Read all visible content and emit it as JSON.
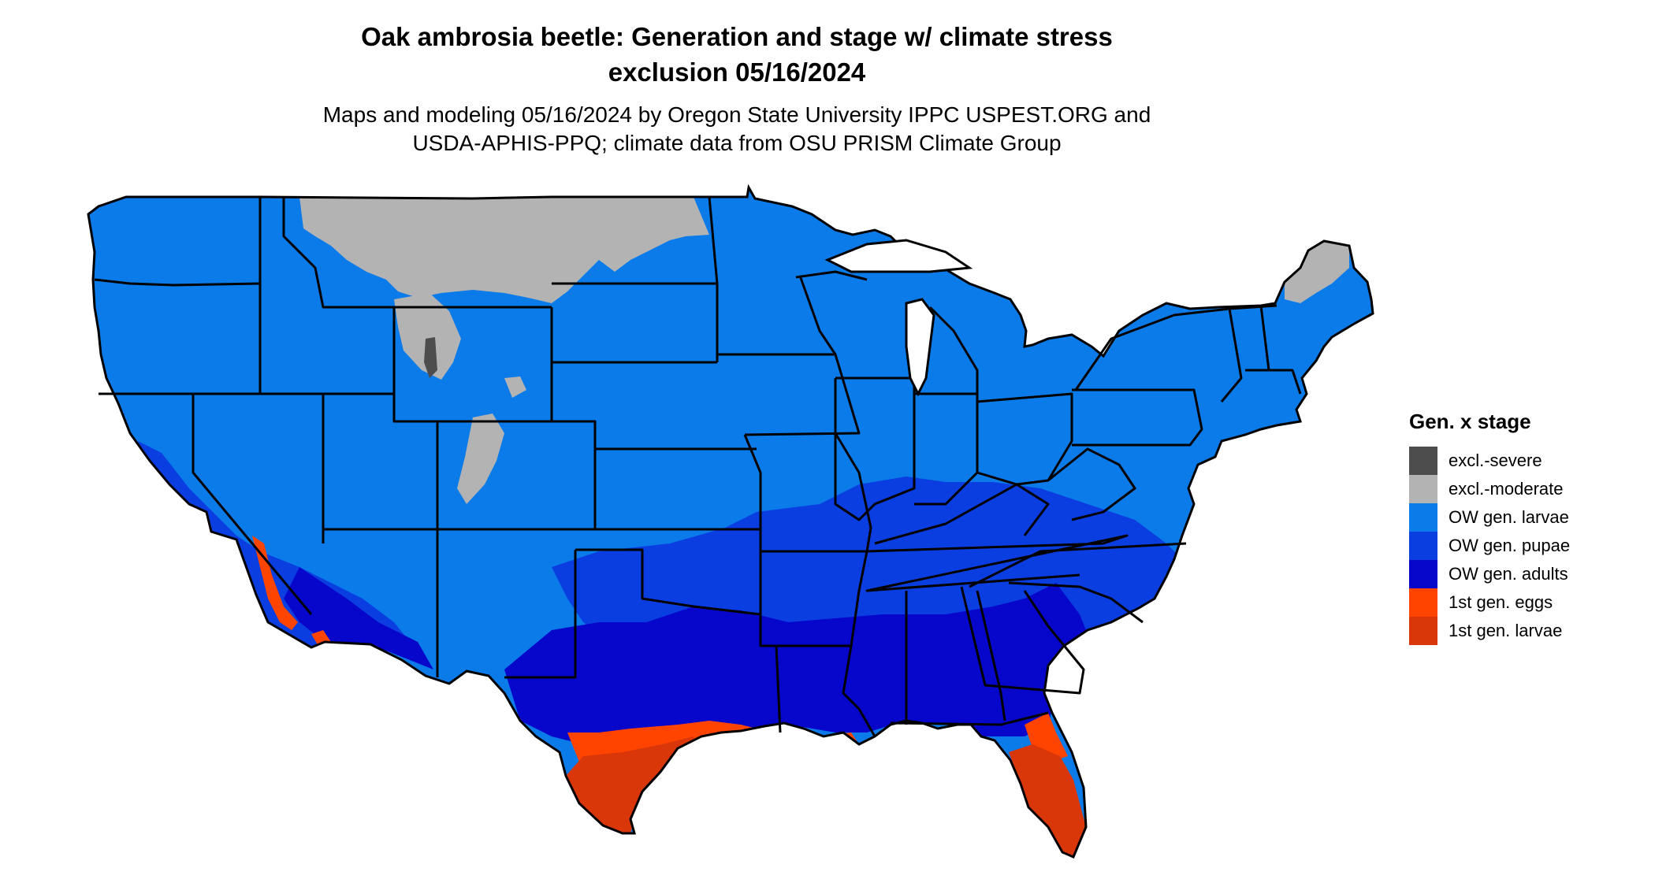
{
  "title": {
    "line1": "Oak ambrosia beetle: Generation and stage w/ climate stress",
    "line2": "exclusion 05/16/2024"
  },
  "subtitle": {
    "line1": "Maps and modeling 05/16/2024 by Oregon State University IPPC USPEST.ORG and",
    "line2": "USDA-APHIS-PPQ; climate data from OSU PRISM Climate Group"
  },
  "legend": {
    "title": "Gen. x stage",
    "items": [
      {
        "label": "excl.-severe",
        "color": "#4d4d4d"
      },
      {
        "label": "excl.-moderate",
        "color": "#b3b3b3"
      },
      {
        "label": "OW gen. larvae",
        "color": "#0a7be8"
      },
      {
        "label": "OW gen. pupae",
        "color": "#0a3ee0"
      },
      {
        "label": "OW gen. adults",
        "color": "#0707cc"
      },
      {
        "label": "1st gen. eggs",
        "color": "#ff4400"
      },
      {
        "label": "1st gen. larvae",
        "color": "#d93609"
      }
    ]
  },
  "map_colors": {
    "excl_severe": "#4d4d4d",
    "excl_moderate": "#b3b3b3",
    "ow_larvae": "#0a7be8",
    "ow_pupae": "#0a3ee0",
    "ow_adults": "#0707cc",
    "gen1_eggs": "#ff4400",
    "gen1_larvae": "#d93609",
    "border": "#000000"
  }
}
